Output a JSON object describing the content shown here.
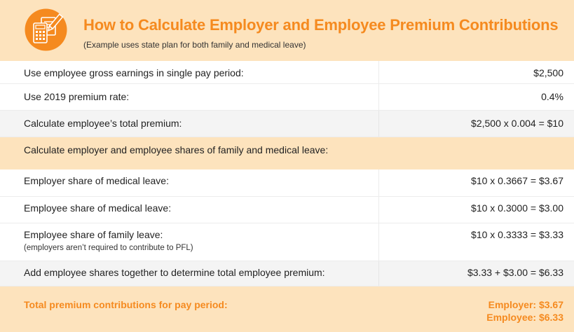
{
  "header": {
    "title": "How to Calculate Employer and Employee Premium Contributions",
    "subtitle": "(Example uses state plan for both family and medical leave)",
    "icon": "calculator-document-pencil-icon",
    "accent_color": "#f58a1f",
    "band_color": "#fde3bd"
  },
  "rows": [
    {
      "label": "Use employee gross earnings in single pay period:",
      "value": "$2,500"
    },
    {
      "label": "Use 2019 premium rate:",
      "value": "0.4%"
    },
    {
      "label": "Calculate employee’s total premium:",
      "value": "$2,500 x 0.004 = $10"
    },
    {
      "label": "Calculate employer and employee shares of family and medical leave:"
    },
    {
      "label": "Employer share of medical leave:",
      "value": "$10 x 0.3667 = $3.67"
    },
    {
      "label": "Employee share of medical leave:",
      "value": "$10 x 0.3000 = $3.00"
    },
    {
      "label": "Employee share of family leave:",
      "note": "(employers aren’t required to contribute to PFL)",
      "value": "$10 x 0.3333 = $3.33"
    },
    {
      "label": "Add employee shares together to determine total employee premium:",
      "value": "$3.33 + $3.00 = $6.33"
    }
  ],
  "total": {
    "label": "Total premium contributions for pay period:",
    "employer": "Employer: $3.67",
    "employee": "Employee: $6.33"
  }
}
